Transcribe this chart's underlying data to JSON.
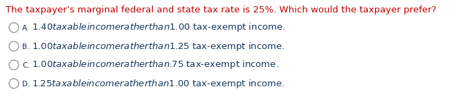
{
  "title": "The taxpayer’s marginal federal and state tax rate is 25%. Which would the taxpayer prefer?",
  "title_color": "#C00000",
  "options": [
    "$1.40 taxable income rather than $1.00 tax-exempt income.",
    "$1.00 taxable income rather than $1.25 tax-exempt income.",
    "$1.00 taxable income rather than $.75 tax-exempt income.",
    "$1.25 taxable income rather than $1.00 tax-exempt income."
  ],
  "option_labels": [
    "A",
    "B",
    "C",
    "D"
  ],
  "option_color": "#17375E",
  "bg_color": "#FFFFFF",
  "circle_edge_color": "#999999",
  "title_font_size": 9.5,
  "option_font_size": 9.5,
  "label_font_size": 7.5
}
